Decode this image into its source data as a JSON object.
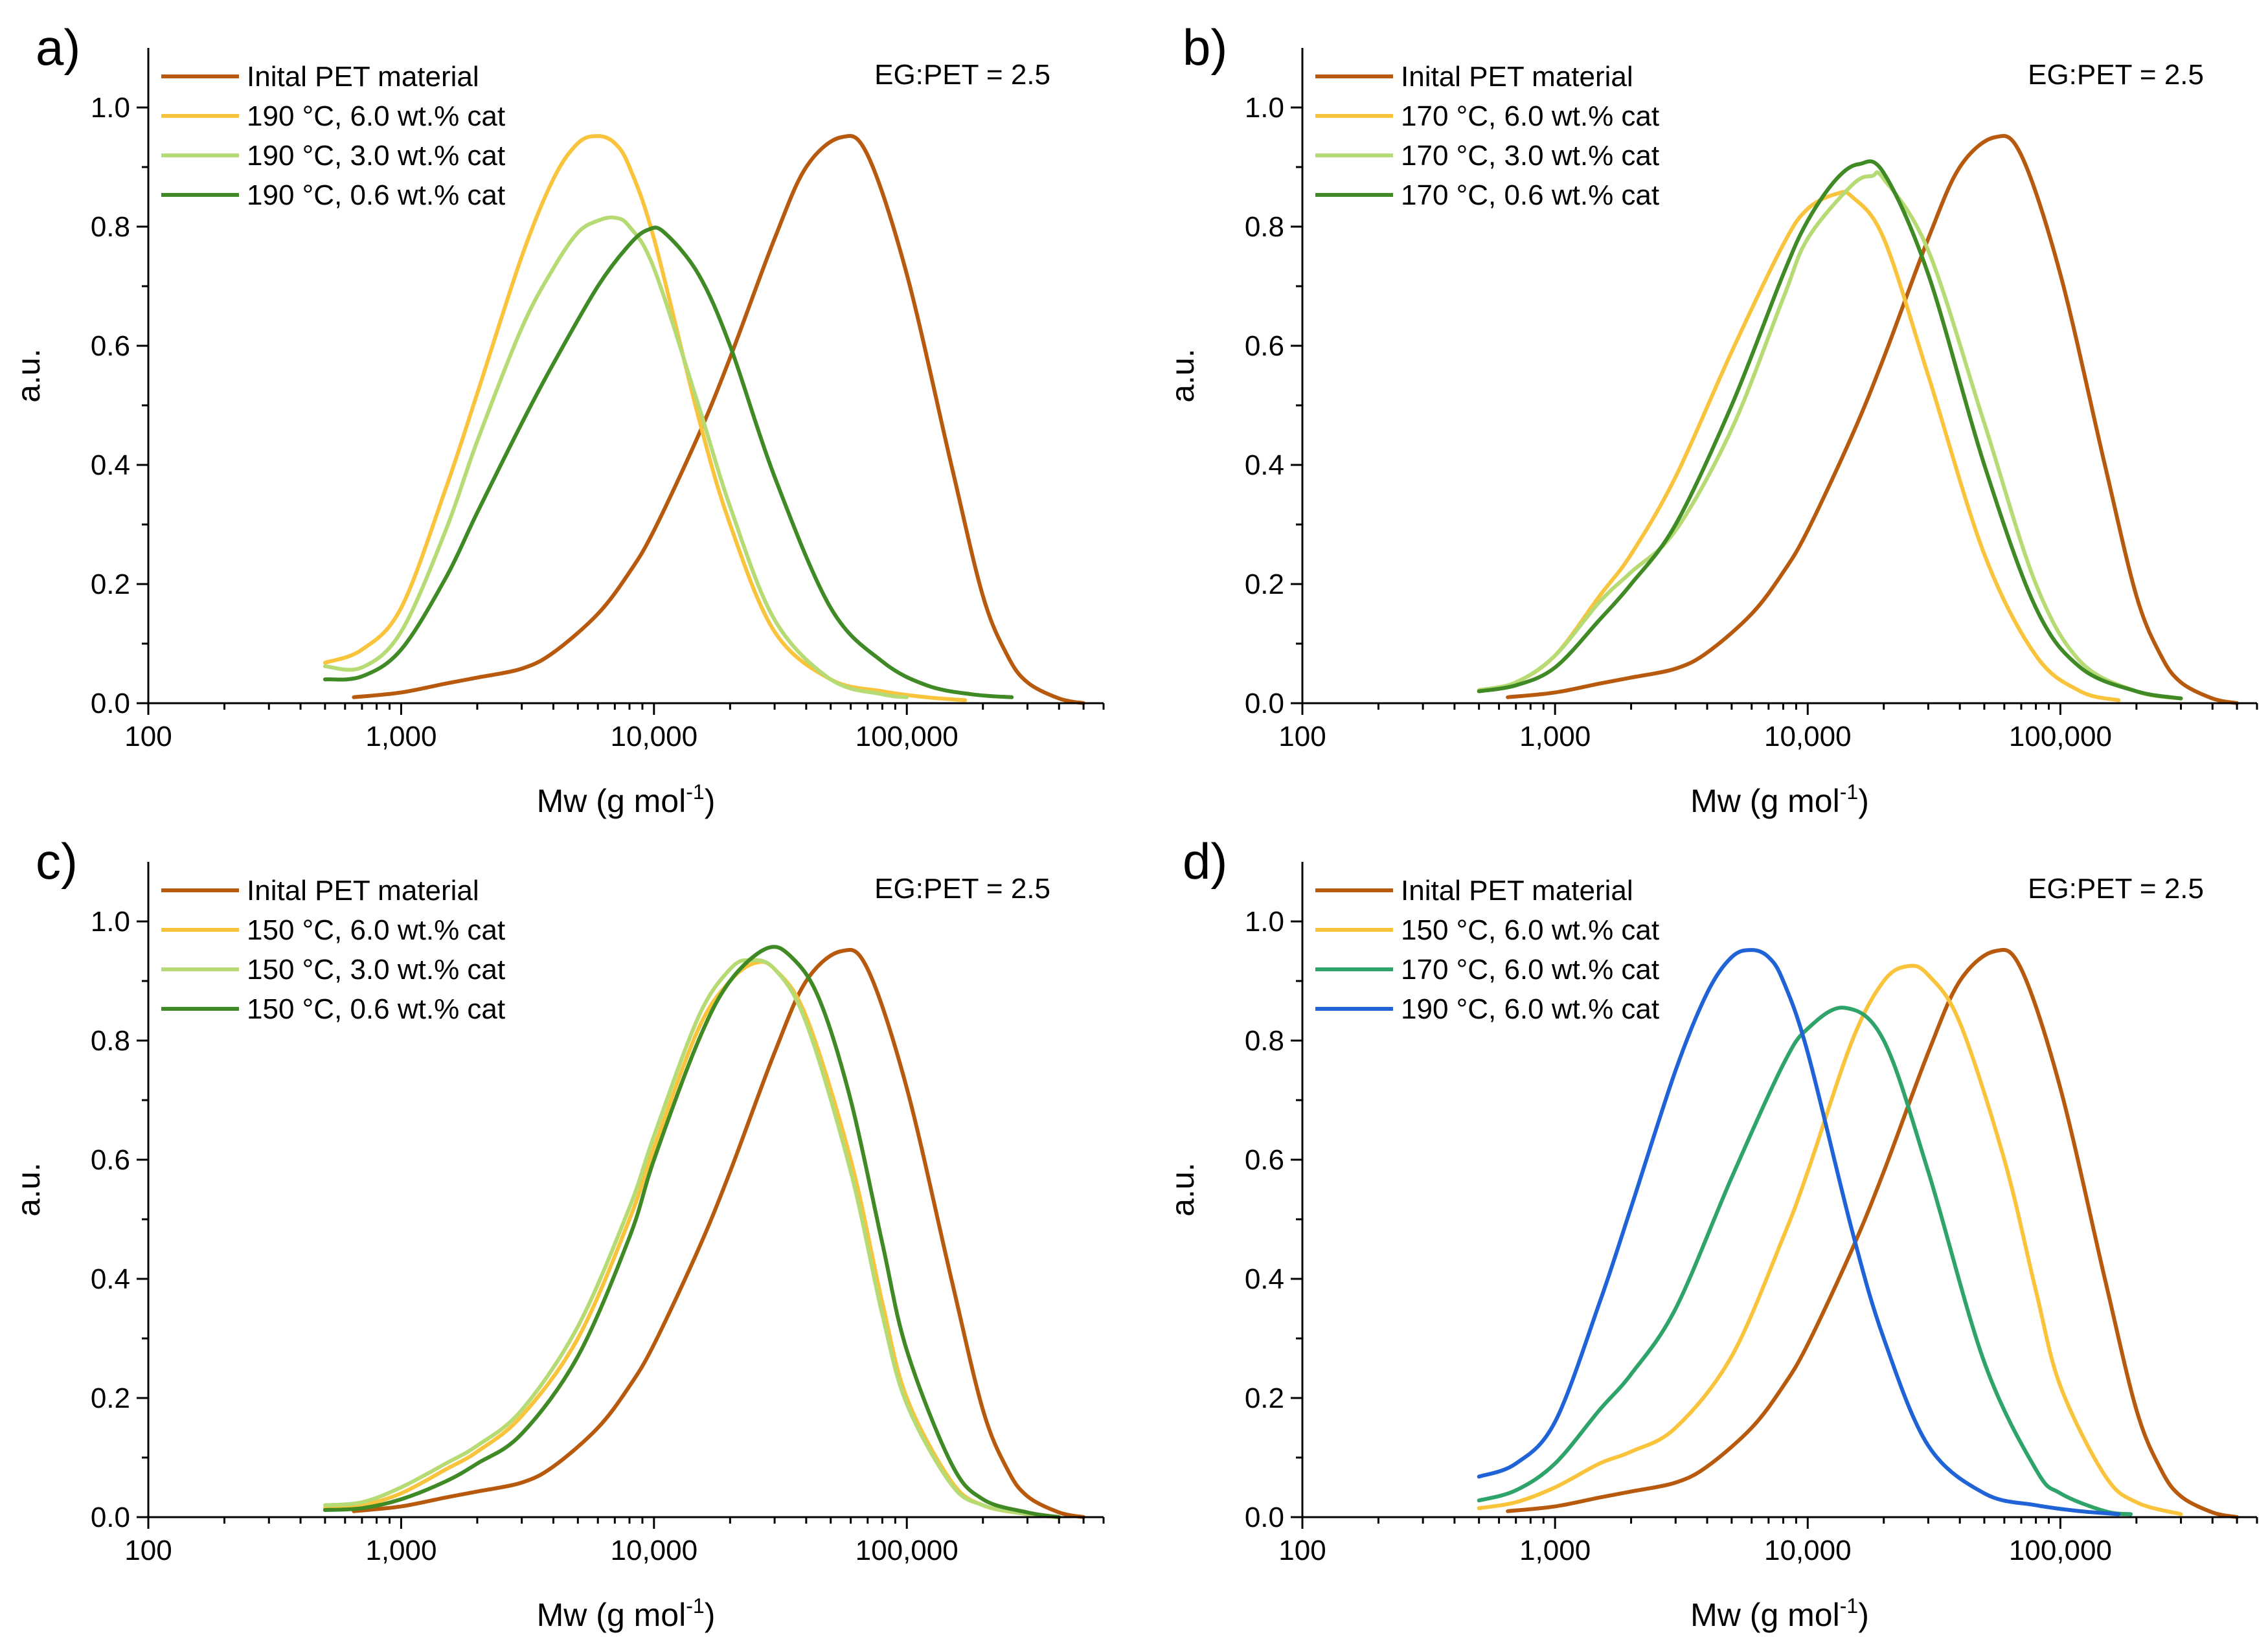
{
  "chart_data": [
    {
      "type": "line",
      "panel_label": "a)",
      "annotation": "EG:PET = 2.5",
      "xlabel": "Mw (g mol",
      "xlabel_sup": "-1",
      "xlabel_suffix": ")",
      "ylabel": "a.u.",
      "xscale": "log",
      "xlim": [
        100,
        600000
      ],
      "ylim": [
        0,
        1.1
      ],
      "xticks": [
        100,
        1000,
        10000,
        100000
      ],
      "xtick_labels": [
        "100",
        "1,000",
        "10,000",
        "100,000"
      ],
      "yticks": [
        0.0,
        0.2,
        0.4,
        0.6,
        0.8,
        1.0
      ],
      "ytick_labels": [
        "0.0",
        "0.2",
        "0.4",
        "0.6",
        "0.8",
        "1.0"
      ],
      "legend_position": "top-left",
      "series": [
        {
          "name": "Inital PET material",
          "color": "#B85A0E",
          "x": [
            650,
            1000,
            1500,
            2000,
            3000,
            4000,
            6000,
            8000,
            10000,
            15000,
            20000,
            30000,
            40000,
            55000,
            70000,
            100000,
            150000,
            200000,
            250000,
            300000,
            400000,
            500000
          ],
          "y": [
            0.01,
            0.018,
            0.033,
            0.043,
            0.058,
            0.085,
            0.15,
            0.22,
            0.29,
            0.45,
            0.58,
            0.78,
            0.9,
            0.95,
            0.92,
            0.72,
            0.4,
            0.18,
            0.08,
            0.035,
            0.008,
            0.0
          ]
        },
        {
          "name": "190 °C, 6.0 wt.% cat",
          "color": "#F9C33B",
          "x": [
            500,
            700,
            1000,
            1500,
            2000,
            3000,
            4000,
            5000,
            6000,
            7000,
            8000,
            10000,
            15000,
            20000,
            30000,
            50000,
            80000,
            120000,
            170000
          ],
          "y": [
            0.068,
            0.09,
            0.16,
            0.36,
            0.52,
            0.75,
            0.88,
            0.94,
            0.952,
            0.94,
            0.9,
            0.78,
            0.48,
            0.3,
            0.12,
            0.04,
            0.02,
            0.01,
            0.005
          ]
        },
        {
          "name": "190 °C, 3.0 wt.% cat",
          "color": "#B7DB74",
          "x": [
            500,
            700,
            1000,
            1500,
            2000,
            3000,
            4000,
            5000,
            6000,
            7000,
            8000,
            10000,
            15000,
            20000,
            30000,
            50000,
            80000,
            100000
          ],
          "y": [
            0.062,
            0.06,
            0.12,
            0.29,
            0.44,
            0.63,
            0.73,
            0.79,
            0.81,
            0.815,
            0.8,
            0.73,
            0.5,
            0.33,
            0.14,
            0.04,
            0.015,
            0.01
          ]
        },
        {
          "name": "190 °C, 0.6 wt.% cat",
          "color": "#3F8A24",
          "x": [
            500,
            700,
            1000,
            1500,
            2000,
            3000,
            4000,
            6000,
            8000,
            9500,
            11000,
            15000,
            20000,
            30000,
            50000,
            80000,
            120000,
            180000,
            260000
          ],
          "y": [
            0.04,
            0.045,
            0.09,
            0.21,
            0.32,
            0.47,
            0.57,
            0.7,
            0.77,
            0.795,
            0.79,
            0.72,
            0.6,
            0.38,
            0.16,
            0.07,
            0.03,
            0.015,
            0.01
          ]
        }
      ]
    },
    {
      "type": "line",
      "panel_label": "b)",
      "annotation": "EG:PET = 2.5",
      "xlabel": "Mw (g mol",
      "xlabel_sup": "-1",
      "xlabel_suffix": ")",
      "ylabel": "a.u.",
      "xscale": "log",
      "xlim": [
        100,
        600000
      ],
      "ylim": [
        0,
        1.1
      ],
      "xticks": [
        100,
        1000,
        10000,
        100000
      ],
      "xtick_labels": [
        "100",
        "1,000",
        "10,000",
        "100,000"
      ],
      "yticks": [
        0.0,
        0.2,
        0.4,
        0.6,
        0.8,
        1.0
      ],
      "ytick_labels": [
        "0.0",
        "0.2",
        "0.4",
        "0.6",
        "0.8",
        "1.0"
      ],
      "legend_position": "top-left",
      "series": [
        {
          "name": "Inital PET material",
          "color": "#B85A0E",
          "x": [
            650,
            1000,
            1500,
            2000,
            3000,
            4000,
            6000,
            8000,
            10000,
            15000,
            20000,
            30000,
            40000,
            55000,
            70000,
            100000,
            150000,
            200000,
            250000,
            300000,
            400000,
            500000
          ],
          "y": [
            0.01,
            0.018,
            0.033,
            0.043,
            0.058,
            0.085,
            0.15,
            0.22,
            0.29,
            0.45,
            0.58,
            0.78,
            0.9,
            0.95,
            0.92,
            0.72,
            0.4,
            0.18,
            0.08,
            0.035,
            0.008,
            0.0
          ]
        },
        {
          "name": "170 °C, 6.0 wt.% cat",
          "color": "#F9C33B",
          "x": [
            500,
            700,
            1000,
            1500,
            2000,
            3000,
            5000,
            8000,
            10000,
            13000,
            15000,
            20000,
            30000,
            50000,
            80000,
            120000,
            170000
          ],
          "y": [
            0.02,
            0.035,
            0.08,
            0.18,
            0.25,
            0.38,
            0.59,
            0.77,
            0.83,
            0.855,
            0.85,
            0.78,
            0.55,
            0.25,
            0.08,
            0.02,
            0.005
          ]
        },
        {
          "name": "170 °C, 3.0 wt.% cat",
          "color": "#B7DB74",
          "x": [
            500,
            700,
            1000,
            1500,
            2000,
            3000,
            5000,
            8000,
            10000,
            15000,
            18000,
            20000,
            30000,
            50000,
            80000,
            120000,
            200000,
            300000
          ],
          "y": [
            0.022,
            0.035,
            0.08,
            0.17,
            0.22,
            0.29,
            0.46,
            0.68,
            0.78,
            0.87,
            0.885,
            0.88,
            0.76,
            0.47,
            0.2,
            0.07,
            0.02,
            0.008
          ]
        },
        {
          "name": "170 °C, 0.6 wt.% cat",
          "color": "#3F8A24",
          "x": [
            500,
            700,
            1000,
            1500,
            2000,
            3000,
            5000,
            8000,
            10000,
            13000,
            16000,
            20000,
            30000,
            50000,
            80000,
            120000,
            200000,
            300000
          ],
          "y": [
            0.02,
            0.03,
            0.06,
            0.14,
            0.2,
            0.3,
            0.5,
            0.72,
            0.81,
            0.88,
            0.905,
            0.89,
            0.72,
            0.4,
            0.16,
            0.06,
            0.02,
            0.008
          ]
        }
      ]
    },
    {
      "type": "line",
      "panel_label": "c)",
      "annotation": "EG:PET = 2.5",
      "xlabel": "Mw (g mol",
      "xlabel_sup": "-1",
      "xlabel_suffix": ")",
      "ylabel": "a.u.",
      "xscale": "log",
      "xlim": [
        100,
        600000
      ],
      "ylim": [
        0,
        1.1
      ],
      "xticks": [
        100,
        1000,
        10000,
        100000
      ],
      "xtick_labels": [
        "100",
        "1,000",
        "10,000",
        "100,000"
      ],
      "yticks": [
        0.0,
        0.2,
        0.4,
        0.6,
        0.8,
        1.0
      ],
      "ytick_labels": [
        "0.0",
        "0.2",
        "0.4",
        "0.6",
        "0.8",
        "1.0"
      ],
      "legend_position": "top-left",
      "series": [
        {
          "name": "Inital PET material",
          "color": "#B85A0E",
          "x": [
            650,
            1000,
            1500,
            2000,
            3000,
            4000,
            6000,
            8000,
            10000,
            15000,
            20000,
            30000,
            40000,
            55000,
            70000,
            100000,
            150000,
            200000,
            250000,
            300000,
            400000,
            500000
          ],
          "y": [
            0.01,
            0.018,
            0.033,
            0.043,
            0.058,
            0.085,
            0.15,
            0.22,
            0.29,
            0.45,
            0.58,
            0.78,
            0.9,
            0.95,
            0.92,
            0.72,
            0.4,
            0.18,
            0.08,
            0.035,
            0.008,
            0.0
          ]
        },
        {
          "name": "150 °C, 6.0 wt.% cat",
          "color": "#F9C33B",
          "x": [
            500,
            700,
            1000,
            1500,
            2000,
            3000,
            5000,
            8000,
            10000,
            15000,
            20000,
            25000,
            30000,
            40000,
            60000,
            80000,
            100000,
            150000,
            200000,
            300000,
            400000
          ],
          "y": [
            0.015,
            0.02,
            0.04,
            0.08,
            0.11,
            0.17,
            0.3,
            0.5,
            0.62,
            0.82,
            0.9,
            0.93,
            0.92,
            0.84,
            0.6,
            0.36,
            0.2,
            0.06,
            0.02,
            0.005,
            0.0
          ]
        },
        {
          "name": "150 °C, 3.0 wt.% cat",
          "color": "#B7DB74",
          "x": [
            500,
            700,
            1000,
            1500,
            2000,
            3000,
            5000,
            8000,
            10000,
            15000,
            20000,
            24000,
            30000,
            40000,
            60000,
            80000,
            100000,
            150000,
            200000,
            300000,
            400000
          ],
          "y": [
            0.02,
            0.025,
            0.05,
            0.09,
            0.12,
            0.18,
            0.32,
            0.52,
            0.64,
            0.84,
            0.92,
            0.935,
            0.92,
            0.83,
            0.58,
            0.34,
            0.19,
            0.055,
            0.02,
            0.005,
            0.0
          ]
        },
        {
          "name": "150 °C, 0.6 wt.% cat",
          "color": "#3F8A24",
          "x": [
            500,
            700,
            1000,
            1500,
            2000,
            3000,
            5000,
            8000,
            10000,
            15000,
            20000,
            28000,
            35000,
            45000,
            60000,
            80000,
            100000,
            150000,
            200000,
            300000,
            400000
          ],
          "y": [
            0.012,
            0.015,
            0.03,
            0.06,
            0.09,
            0.14,
            0.27,
            0.47,
            0.6,
            0.8,
            0.9,
            0.955,
            0.94,
            0.87,
            0.7,
            0.46,
            0.28,
            0.09,
            0.03,
            0.008,
            0.0
          ]
        }
      ]
    },
    {
      "type": "line",
      "panel_label": "d)",
      "annotation": "EG:PET = 2.5",
      "xlabel": "Mw (g mol",
      "xlabel_sup": "-1",
      "xlabel_suffix": ")",
      "ylabel": "a.u.",
      "xscale": "log",
      "xlim": [
        100,
        600000
      ],
      "ylim": [
        0,
        1.1
      ],
      "xticks": [
        100,
        1000,
        10000,
        100000
      ],
      "xtick_labels": [
        "100",
        "1,000",
        "10,000",
        "100,000"
      ],
      "yticks": [
        0.0,
        0.2,
        0.4,
        0.6,
        0.8,
        1.0
      ],
      "ytick_labels": [
        "0.0",
        "0.2",
        "0.4",
        "0.6",
        "0.8",
        "1.0"
      ],
      "legend_position": "top-left",
      "series": [
        {
          "name": "Inital PET material",
          "color": "#B85A0E",
          "x": [
            650,
            1000,
            1500,
            2000,
            3000,
            4000,
            6000,
            8000,
            10000,
            15000,
            20000,
            30000,
            40000,
            55000,
            70000,
            100000,
            150000,
            200000,
            250000,
            300000,
            400000,
            500000
          ],
          "y": [
            0.01,
            0.018,
            0.033,
            0.043,
            0.058,
            0.085,
            0.15,
            0.22,
            0.29,
            0.45,
            0.58,
            0.78,
            0.9,
            0.95,
            0.92,
            0.72,
            0.4,
            0.18,
            0.08,
            0.035,
            0.008,
            0.0
          ]
        },
        {
          "name": "150 °C, 6.0 wt.% cat",
          "color": "#F9C33B",
          "x": [
            500,
            700,
            1000,
            1500,
            2000,
            3000,
            5000,
            8000,
            10000,
            15000,
            20000,
            25000,
            30000,
            40000,
            60000,
            80000,
            100000,
            150000,
            200000,
            300000
          ],
          "y": [
            0.015,
            0.025,
            0.05,
            0.09,
            0.11,
            0.15,
            0.27,
            0.47,
            0.58,
            0.8,
            0.9,
            0.925,
            0.91,
            0.83,
            0.6,
            0.38,
            0.22,
            0.07,
            0.025,
            0.005
          ]
        },
        {
          "name": "170 °C, 6.0 wt.% cat",
          "color": "#2EA46A",
          "x": [
            500,
            700,
            1000,
            1500,
            2000,
            3000,
            5000,
            8000,
            10000,
            14000,
            20000,
            30000,
            50000,
            80000,
            100000,
            150000,
            190000
          ],
          "y": [
            0.028,
            0.045,
            0.09,
            0.18,
            0.24,
            0.35,
            0.57,
            0.76,
            0.82,
            0.855,
            0.8,
            0.58,
            0.26,
            0.08,
            0.04,
            0.01,
            0.005
          ]
        },
        {
          "name": "190 °C, 6.0 wt.% cat",
          "color": "#1F63D6",
          "x": [
            500,
            700,
            1000,
            1500,
            2000,
            3000,
            4000,
            5000,
            6000,
            7000,
            8000,
            10000,
            15000,
            20000,
            30000,
            50000,
            80000,
            120000,
            170000
          ],
          "y": [
            0.068,
            0.09,
            0.16,
            0.36,
            0.52,
            0.75,
            0.88,
            0.94,
            0.952,
            0.94,
            0.9,
            0.78,
            0.48,
            0.3,
            0.12,
            0.04,
            0.02,
            0.01,
            0.005
          ]
        }
      ]
    }
  ]
}
